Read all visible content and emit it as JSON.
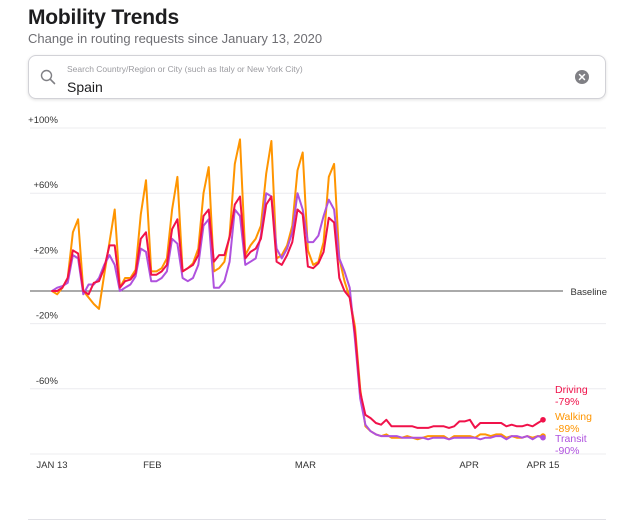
{
  "header": {
    "title": "Mobility Trends",
    "subtitle": "Change in routing requests since January 13, 2020"
  },
  "search": {
    "placeholder": "Search Country/Region or City (such as Italy or New York City)",
    "value": "Spain"
  },
  "icons": {
    "search": "magnifier-icon",
    "clear": "clear-x-circle-icon"
  },
  "chart_data": {
    "type": "line",
    "title": "",
    "xlabel": "",
    "ylabel": "",
    "x_start": "2020-01-13",
    "x_end": "2020-04-15",
    "ylim": [
      -95,
      105
    ],
    "y_ticks": [
      {
        "value": 100,
        "label": "+100%"
      },
      {
        "value": 60,
        "label": "+60%"
      },
      {
        "value": 20,
        "label": "+20%"
      },
      {
        "value": -20,
        "label": "-20%"
      },
      {
        "value": -60,
        "label": "-60%"
      }
    ],
    "x_ticks": [
      {
        "date": "2020-01-13",
        "label": "JAN 13"
      },
      {
        "date": "2020-02-01",
        "label": "FEB"
      },
      {
        "date": "2020-03-01",
        "label": "MAR"
      },
      {
        "date": "2020-04-01",
        "label": "APR"
      },
      {
        "date": "2020-04-15",
        "label": "APR 15"
      }
    ],
    "baseline": {
      "value": 0,
      "label": "Baseline"
    },
    "gridlines": "horizontal",
    "series": [
      {
        "name": "Driving",
        "end_label": "-79%",
        "color": "#f0124a",
        "values": [
          0,
          0,
          2,
          8,
          25,
          23,
          0,
          -2,
          5,
          6,
          14,
          28,
          28,
          2,
          6,
          7,
          11,
          32,
          36,
          10,
          10,
          12,
          16,
          38,
          44,
          12,
          14,
          16,
          22,
          46,
          50,
          18,
          22,
          22,
          33,
          53,
          58,
          20,
          24,
          26,
          32,
          53,
          58,
          18,
          16,
          22,
          30,
          50,
          47,
          15,
          14,
          17,
          24,
          45,
          42,
          8,
          0,
          -4,
          -26,
          -62,
          -76,
          -78,
          -81,
          -82,
          -79,
          -83,
          -83,
          -83,
          -83,
          -83,
          -84,
          -84,
          -84,
          -83,
          -83,
          -83,
          -84,
          -83,
          -80,
          -80,
          -79,
          -84,
          -81,
          -81,
          -81,
          -81,
          -81,
          -83,
          -82,
          -83,
          -83,
          -82,
          -83,
          -81,
          -79
        ]
      },
      {
        "name": "Walking",
        "end_label": "-89%",
        "color": "#ff9500",
        "values": [
          0,
          -2,
          2,
          8,
          36,
          44,
          0,
          -4,
          -8,
          -11,
          10,
          30,
          50,
          2,
          8,
          8,
          13,
          47,
          68,
          12,
          12,
          14,
          20,
          50,
          70,
          12,
          14,
          17,
          26,
          60,
          76,
          12,
          14,
          18,
          34,
          78,
          93,
          22,
          28,
          32,
          40,
          72,
          92,
          20,
          22,
          28,
          40,
          74,
          85,
          25,
          16,
          18,
          30,
          70,
          78,
          20,
          6,
          -4,
          -22,
          -60,
          -83,
          -86,
          -88,
          -89,
          -88,
          -90,
          -90,
          -90,
          -89,
          -90,
          -91,
          -90,
          -89,
          -89,
          -89,
          -89,
          -91,
          -89,
          -89,
          -89,
          -89,
          -90,
          -88,
          -88,
          -89,
          -88,
          -88,
          -90,
          -89,
          -90,
          -90,
          -89,
          -90,
          -89,
          -89
        ]
      },
      {
        "name": "Transit",
        "end_label": "-90%",
        "color": "#af52de",
        "values": [
          0,
          2,
          3,
          5,
          22,
          20,
          -2,
          4,
          4,
          8,
          16,
          22,
          16,
          0,
          2,
          4,
          9,
          26,
          24,
          6,
          6,
          8,
          12,
          32,
          29,
          8,
          6,
          8,
          16,
          40,
          44,
          2,
          2,
          6,
          18,
          50,
          46,
          16,
          18,
          20,
          34,
          60,
          58,
          26,
          20,
          26,
          36,
          60,
          50,
          30,
          30,
          34,
          46,
          56,
          50,
          20,
          12,
          2,
          -30,
          -66,
          -82,
          -86,
          -88,
          -89,
          -89,
          -89,
          -89,
          -90,
          -90,
          -90,
          -90,
          -90,
          -91,
          -90,
          -90,
          -90,
          -91,
          -90,
          -90,
          -90,
          -90,
          -90,
          -91,
          -90,
          -90,
          -89,
          -89,
          -91,
          -89,
          -89,
          -90,
          -89,
          -91,
          -89,
          -90
        ]
      }
    ]
  }
}
